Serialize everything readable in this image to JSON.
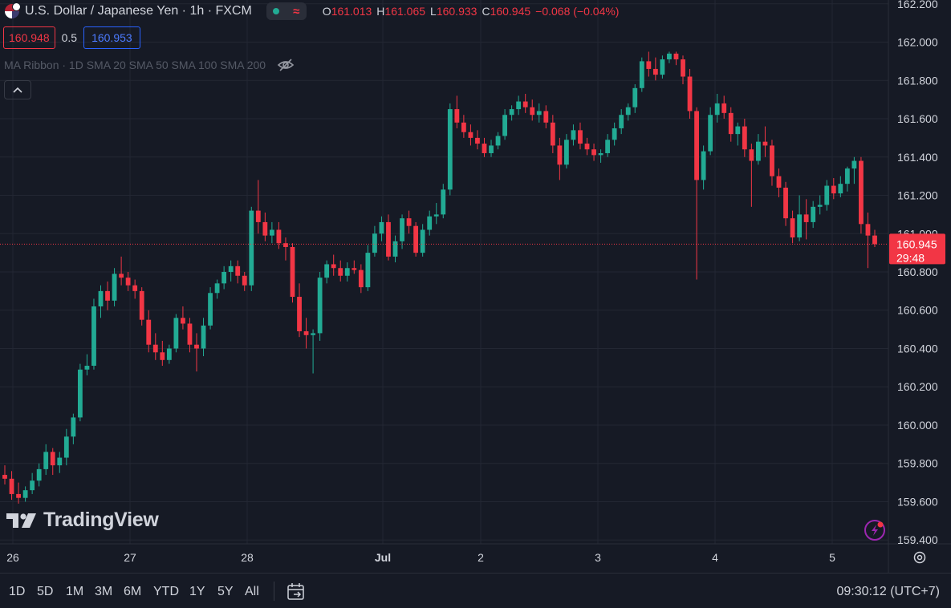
{
  "header": {
    "symbol_title": "U.S. Dollar / Japanese Yen · 1h · FXCM",
    "ohlc": [
      {
        "key": "O",
        "value": "161.013"
      },
      {
        "key": "H",
        "value": "161.065"
      },
      {
        "key": "L",
        "value": "160.933"
      },
      {
        "key": "C",
        "value": "160.945"
      }
    ],
    "change": "−0.068 (−0.04%)",
    "bid": "160.948",
    "spread": "0.5",
    "ask": "160.953",
    "indicator": "MA Ribbon · 1D SMA 20 SMA 50 SMA 100 SMA 200"
  },
  "logo": {
    "text": "TradingView"
  },
  "toolbar": {
    "ranges": [
      "1D",
      "5D",
      "1M",
      "3M",
      "6M",
      "YTD",
      "1Y",
      "5Y",
      "All"
    ],
    "time": "09:30:12 (UTC+7)"
  },
  "colors": {
    "up": "#22ab94",
    "down": "#f23645",
    "background": "#161a25",
    "grid": "#232733"
  },
  "chart_data": {
    "type": "candlestick",
    "x_tick_labels": [
      "26",
      "27",
      "28",
      "Jul",
      "2",
      "3",
      "4",
      "5"
    ],
    "y_tick_labels": [
      "162.200",
      "162.000",
      "161.800",
      "161.600",
      "161.400",
      "161.200",
      "161.000",
      "160.800",
      "160.600",
      "160.400",
      "160.200",
      "160.000",
      "159.800",
      "159.600",
      "159.400"
    ],
    "ylim": [
      159.38,
      162.22
    ],
    "last_price": {
      "value": 160.945,
      "label": "160.945",
      "countdown": "29:48"
    },
    "candles": [
      [
        159.74,
        159.79,
        159.69,
        159.72
      ],
      [
        159.72,
        159.76,
        159.61,
        159.64
      ],
      [
        159.64,
        159.7,
        159.59,
        159.62
      ],
      [
        159.62,
        159.68,
        159.6,
        159.66
      ],
      [
        159.66,
        159.75,
        159.64,
        159.71
      ],
      [
        159.71,
        159.8,
        159.68,
        159.77
      ],
      [
        159.77,
        159.9,
        159.74,
        159.86
      ],
      [
        159.86,
        159.88,
        159.74,
        159.79
      ],
      [
        159.79,
        159.86,
        159.75,
        159.83
      ],
      [
        159.83,
        159.98,
        159.79,
        159.94
      ],
      [
        159.94,
        160.06,
        159.9,
        160.04
      ],
      [
        160.04,
        160.32,
        160.02,
        160.29
      ],
      [
        160.29,
        160.37,
        160.26,
        160.31
      ],
      [
        160.31,
        160.66,
        160.29,
        160.62
      ],
      [
        160.62,
        160.73,
        160.56,
        160.7
      ],
      [
        160.7,
        160.75,
        160.6,
        160.65
      ],
      [
        160.65,
        160.82,
        160.62,
        160.79
      ],
      [
        160.79,
        160.88,
        160.73,
        160.77
      ],
      [
        160.77,
        160.8,
        160.7,
        160.73
      ],
      [
        160.73,
        160.76,
        160.66,
        160.7
      ],
      [
        160.7,
        160.72,
        160.52,
        160.55
      ],
      [
        160.55,
        160.6,
        160.38,
        160.42
      ],
      [
        160.42,
        160.48,
        160.34,
        160.38
      ],
      [
        160.38,
        160.44,
        160.31,
        160.34
      ],
      [
        160.34,
        160.42,
        160.32,
        160.4
      ],
      [
        160.4,
        160.58,
        160.38,
        160.56
      ],
      [
        160.56,
        160.62,
        160.5,
        160.53
      ],
      [
        160.53,
        160.56,
        160.38,
        160.42
      ],
      [
        160.42,
        160.48,
        160.28,
        160.4
      ],
      [
        160.4,
        160.56,
        160.36,
        160.52
      ],
      [
        160.52,
        160.72,
        160.5,
        160.69
      ],
      [
        160.69,
        160.76,
        160.66,
        160.74
      ],
      [
        160.74,
        160.83,
        160.71,
        160.8
      ],
      [
        160.8,
        160.86,
        160.75,
        160.83
      ],
      [
        160.83,
        160.86,
        160.74,
        160.78
      ],
      [
        160.78,
        160.8,
        160.7,
        160.73
      ],
      [
        160.73,
        161.14,
        160.7,
        161.12
      ],
      [
        161.12,
        161.28,
        161.0,
        161.06
      ],
      [
        161.06,
        161.11,
        160.96,
        160.99
      ],
      [
        160.99,
        161.06,
        160.95,
        161.02
      ],
      [
        161.02,
        161.06,
        160.92,
        160.95
      ],
      [
        160.95,
        160.98,
        160.86,
        160.93
      ],
      [
        160.93,
        160.95,
        160.64,
        160.67
      ],
      [
        160.67,
        160.74,
        160.46,
        160.49
      ],
      [
        160.49,
        160.56,
        160.4,
        160.47
      ],
      [
        160.47,
        160.5,
        160.27,
        160.48
      ],
      [
        160.48,
        160.8,
        160.44,
        160.77
      ],
      [
        160.77,
        160.86,
        160.74,
        160.84
      ],
      [
        160.84,
        160.89,
        160.78,
        160.82
      ],
      [
        160.82,
        160.86,
        160.75,
        160.78
      ],
      [
        160.78,
        160.85,
        160.75,
        160.82
      ],
      [
        160.82,
        160.86,
        160.79,
        160.81
      ],
      [
        160.81,
        160.84,
        160.69,
        160.72
      ],
      [
        160.72,
        160.94,
        160.7,
        160.9
      ],
      [
        160.9,
        161.04,
        160.88,
        161.0
      ],
      [
        161.0,
        161.09,
        160.96,
        161.06
      ],
      [
        161.06,
        161.1,
        160.86,
        160.88
      ],
      [
        160.88,
        160.99,
        160.85,
        160.96
      ],
      [
        160.96,
        161.1,
        160.92,
        161.08
      ],
      [
        161.08,
        161.12,
        161.0,
        161.04
      ],
      [
        161.04,
        161.06,
        160.88,
        160.9
      ],
      [
        160.9,
        161.05,
        160.88,
        161.02
      ],
      [
        161.02,
        161.12,
        160.99,
        161.09
      ],
      [
        161.09,
        161.16,
        161.05,
        161.1
      ],
      [
        161.1,
        161.26,
        161.08,
        161.23
      ],
      [
        161.23,
        161.68,
        161.2,
        161.65
      ],
      [
        161.65,
        161.72,
        161.55,
        161.58
      ],
      [
        161.58,
        161.62,
        161.5,
        161.53
      ],
      [
        161.53,
        161.57,
        161.46,
        161.5
      ],
      [
        161.5,
        161.54,
        161.44,
        161.47
      ],
      [
        161.47,
        161.5,
        161.4,
        161.42
      ],
      [
        161.42,
        161.49,
        161.4,
        161.46
      ],
      [
        161.46,
        161.53,
        161.44,
        161.51
      ],
      [
        161.51,
        161.65,
        161.49,
        161.62
      ],
      [
        161.62,
        161.67,
        161.59,
        161.65
      ],
      [
        161.65,
        161.72,
        161.62,
        161.69
      ],
      [
        161.69,
        161.73,
        161.63,
        161.66
      ],
      [
        161.66,
        161.7,
        161.59,
        161.62
      ],
      [
        161.62,
        161.68,
        161.58,
        161.64
      ],
      [
        161.64,
        161.67,
        161.55,
        161.58
      ],
      [
        161.58,
        161.62,
        161.42,
        161.46
      ],
      [
        161.46,
        161.5,
        161.28,
        161.36
      ],
      [
        161.36,
        161.52,
        161.34,
        161.49
      ],
      [
        161.49,
        161.57,
        161.46,
        161.54
      ],
      [
        161.54,
        161.58,
        161.44,
        161.47
      ],
      [
        161.47,
        161.5,
        161.41,
        161.44
      ],
      [
        161.44,
        161.47,
        161.38,
        161.41
      ],
      [
        161.41,
        161.44,
        161.37,
        161.42
      ],
      [
        161.42,
        161.52,
        161.4,
        161.49
      ],
      [
        161.49,
        161.58,
        161.46,
        161.55
      ],
      [
        161.55,
        161.65,
        161.52,
        161.62
      ],
      [
        161.62,
        161.68,
        161.59,
        161.66
      ],
      [
        161.66,
        161.78,
        161.63,
        161.76
      ],
      [
        161.76,
        161.92,
        161.74,
        161.9
      ],
      [
        161.9,
        161.95,
        161.82,
        161.86
      ],
      [
        161.86,
        161.92,
        161.8,
        161.83
      ],
      [
        161.83,
        161.93,
        161.81,
        161.91
      ],
      [
        161.91,
        161.95,
        161.89,
        161.94
      ],
      [
        161.94,
        161.95,
        161.88,
        161.91
      ],
      [
        161.91,
        161.93,
        161.78,
        161.82
      ],
      [
        161.82,
        161.86,
        161.6,
        161.64
      ],
      [
        161.64,
        161.66,
        160.76,
        161.28
      ],
      [
        161.28,
        161.46,
        161.23,
        161.43
      ],
      [
        161.43,
        161.66,
        161.41,
        161.62
      ],
      [
        161.62,
        161.73,
        161.58,
        161.68
      ],
      [
        161.68,
        161.72,
        161.6,
        161.63
      ],
      [
        161.63,
        161.66,
        161.48,
        161.52
      ],
      [
        161.52,
        161.58,
        161.46,
        161.56
      ],
      [
        161.56,
        161.6,
        161.4,
        161.44
      ],
      [
        161.44,
        161.47,
        161.14,
        161.38
      ],
      [
        161.38,
        161.52,
        161.36,
        161.48
      ],
      [
        161.48,
        161.56,
        161.4,
        161.46
      ],
      [
        161.46,
        161.49,
        161.25,
        161.3
      ],
      [
        161.3,
        161.34,
        161.19,
        161.24
      ],
      [
        161.24,
        161.27,
        161.04,
        161.08
      ],
      [
        161.08,
        161.12,
        160.95,
        160.98
      ],
      [
        160.98,
        161.2,
        160.96,
        161.1
      ],
      [
        161.1,
        161.18,
        160.97,
        161.06
      ],
      [
        161.06,
        161.17,
        161.03,
        161.14
      ],
      [
        161.14,
        161.2,
        161.1,
        161.15
      ],
      [
        161.15,
        161.28,
        161.12,
        161.25
      ],
      [
        161.25,
        161.29,
        161.18,
        161.21
      ],
      [
        161.21,
        161.3,
        161.19,
        161.26
      ],
      [
        161.26,
        161.35,
        161.22,
        161.34
      ],
      [
        161.34,
        161.4,
        161.26,
        161.38
      ],
      [
        161.38,
        161.4,
        161.0,
        161.05
      ],
      [
        161.05,
        161.11,
        160.82,
        160.99
      ],
      [
        160.99,
        161.02,
        160.93,
        160.945
      ]
    ]
  }
}
